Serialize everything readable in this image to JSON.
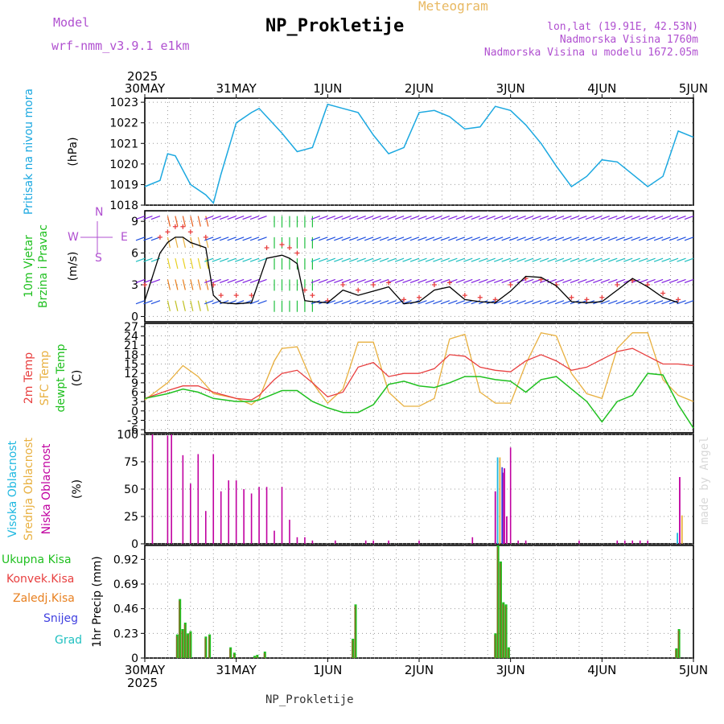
{
  "header": {
    "title": "NP_Prokletije",
    "subtitle": "Meteogram",
    "model_label": "Model",
    "model_value": "wrf-nmm_v3.9.1 e1km",
    "info_lonlat": "lon,lat (19.91E, 42.53N)",
    "info_altitude": "Nadmorska Visina 1760m",
    "info_model_altitude": "Nadmorska Visina u modelu 1672.05m"
  },
  "footer": {
    "station": "NP_Prokletije",
    "credit": "made by Angel"
  },
  "time_axis": {
    "year": "2025",
    "labels": [
      "30MAY",
      "31MAY",
      "1JUN",
      "2JUN",
      "3JUN",
      "4JUN",
      "5JUN"
    ]
  },
  "colors": {
    "pressure": "#1ba8e0",
    "temp2m": "#e84040",
    "sfc_temp": "#e8b040",
    "dewpt": "#20c020",
    "high_cloud": "#20b8e0",
    "mid_cloud": "#e8b040",
    "low_cloud": "#c000a0",
    "rain_total": "#20c020",
    "rain_conv": "#e84040",
    "graupel": "#e88020",
    "snow": "#4040e0",
    "hail": "#20c0c0",
    "wind_gust": "#e84040",
    "wind_speed": "#000000"
  },
  "chart_data": [
    {
      "type": "line",
      "panel": "pressure",
      "ylabel_lines": [
        "Pritisak na nivou mora",
        "(hPa)"
      ],
      "ylim": [
        1018,
        1023.2
      ],
      "yticks": [
        1018,
        1019,
        1020,
        1021,
        1022,
        1023
      ],
      "x_hours": [
        0,
        4,
        6,
        8,
        12,
        16,
        18,
        20,
        24,
        28,
        30,
        36,
        40,
        44,
        48,
        52,
        56,
        60,
        64,
        68,
        72,
        76,
        80,
        84,
        88,
        92,
        96,
        100,
        104,
        108,
        112,
        116,
        120,
        124,
        128,
        132,
        136,
        140,
        144
      ],
      "series": [
        {
          "values": [
            1018.9,
            1019.2,
            1020.5,
            1020.4,
            1019.0,
            1018.5,
            1018.1,
            1019.5,
            1022.0,
            1022.5,
            1022.7,
            1021.5,
            1020.6,
            1020.8,
            1022.9,
            1022.7,
            1022.5,
            1021.4,
            1020.5,
            1020.8,
            1022.5,
            1022.6,
            1022.3,
            1021.7,
            1021.8,
            1022.8,
            1022.6,
            1021.9,
            1021.0,
            1019.9,
            1018.9,
            1019.4,
            1020.2,
            1020.1,
            1019.5,
            1018.9,
            1019.4,
            1021.6,
            1021.3
          ]
        }
      ]
    },
    {
      "type": "line",
      "panel": "wind",
      "ylabel_lines": [
        "10m Vjetar",
        "Brzina i Pravac",
        "(m/s)"
      ],
      "compass": {
        "n": "N",
        "w": "W",
        "e": "E",
        "s": "S"
      },
      "ylim": [
        -0.5,
        10
      ],
      "yticks": [
        0,
        3,
        6,
        9
      ],
      "x_hours": [
        0,
        4,
        6,
        8,
        10,
        12,
        16,
        18,
        20,
        24,
        28,
        32,
        36,
        38,
        40,
        42,
        44,
        48,
        52,
        56,
        60,
        64,
        68,
        72,
        76,
        80,
        84,
        88,
        92,
        96,
        100,
        104,
        108,
        112,
        116,
        120,
        124,
        128,
        132,
        136,
        140
      ],
      "series": [
        {
          "values": [
            1.5,
            6.0,
            7.0,
            7.5,
            7.5,
            7.0,
            6.5,
            2.0,
            1.3,
            1.2,
            1.3,
            5.5,
            5.8,
            5.5,
            5.0,
            1.5,
            1.4,
            1.3,
            2.5,
            2.0,
            2.4,
            2.8,
            1.2,
            1.4,
            2.5,
            2.8,
            1.6,
            1.4,
            1.3,
            2.4,
            3.8,
            3.7,
            2.9,
            1.4,
            1.3,
            1.4,
            2.5,
            3.6,
            2.8,
            1.8,
            1.3
          ]
        },
        {
          "values": [
            3.0,
            7.5,
            8.0,
            8.5,
            8.5,
            8.0,
            7.5,
            3.0,
            2.0,
            2.0,
            2.0,
            6.5,
            6.8,
            6.5,
            6.0,
            2.5,
            2.0,
            1.5,
            3.0,
            2.5,
            3.0,
            3.2,
            1.6,
            1.8,
            3.0,
            3.2,
            2.0,
            1.8,
            1.6,
            3.0,
            3.6,
            3.5,
            3.0,
            1.8,
            1.6,
            1.8,
            3.0,
            3.4,
            3.0,
            2.2,
            1.6
          ]
        }
      ]
    },
    {
      "type": "line",
      "panel": "temperature",
      "ylabel_lines": [
        "2m Temp",
        "SFC Temp",
        "dewpt Temp",
        "(C)"
      ],
      "ylim": [
        -7,
        28
      ],
      "yticks": [
        -6,
        -3,
        0,
        3,
        6,
        9,
        12,
        15,
        18,
        21,
        24,
        27
      ],
      "x_hours": [
        0,
        6,
        10,
        14,
        18,
        24,
        28,
        30,
        34,
        36,
        40,
        44,
        48,
        52,
        56,
        60,
        64,
        68,
        72,
        76,
        80,
        84,
        88,
        92,
        96,
        100,
        104,
        108,
        112,
        116,
        120,
        124,
        128,
        132,
        136,
        140,
        144
      ],
      "series": [
        {
          "values": [
            4.0,
            6.5,
            8.0,
            8.0,
            6.0,
            4.0,
            3.5,
            5.0,
            10.0,
            12.0,
            13.0,
            9.0,
            4.5,
            6.0,
            14.0,
            15.5,
            11.0,
            12.0,
            12.0,
            13.5,
            18.0,
            17.5,
            14.0,
            13.0,
            12.5,
            16.0,
            18.0,
            16.0,
            13.0,
            14.0,
            16.5,
            19.0,
            20.0,
            17.5,
            15.0,
            15.0,
            14.5
          ]
        },
        {
          "values": [
            3.5,
            9.0,
            14.5,
            11.0,
            5.5,
            4.0,
            2.0,
            4.0,
            16.0,
            20.0,
            20.5,
            9.0,
            2.5,
            7.0,
            22.0,
            22.0,
            6.0,
            1.5,
            1.5,
            4.0,
            23.0,
            24.5,
            6.0,
            2.5,
            2.5,
            15.0,
            25.0,
            24.0,
            12.0,
            5.5,
            4.0,
            20.0,
            25.0,
            25.0,
            10.0,
            5.0,
            3.0
          ]
        },
        {
          "values": [
            4.0,
            5.5,
            7.0,
            6.0,
            4.0,
            3.0,
            3.0,
            3.5,
            5.5,
            6.5,
            6.5,
            3.0,
            1.0,
            -0.5,
            -0.5,
            2.0,
            8.5,
            9.5,
            8.0,
            7.5,
            9.0,
            11.0,
            11.0,
            10.0,
            9.5,
            6.0,
            10.0,
            11.0,
            7.0,
            3.0,
            -3.5,
            3.0,
            5.0,
            12.0,
            11.5,
            2.0,
            -5.5
          ]
        }
      ]
    },
    {
      "type": "bar",
      "panel": "cloud",
      "ylabel_lines": [
        "Visoka Oblacnost",
        "Srednja Oblacnost",
        "Niska Oblacnost",
        "(%)"
      ],
      "ylim": [
        0,
        100
      ],
      "yticks": [
        0,
        25,
        50,
        75,
        100
      ],
      "x_hours": [
        2,
        6,
        7,
        10,
        12,
        14,
        16,
        18,
        20,
        22,
        24,
        26,
        28,
        30,
        32,
        34,
        36,
        38,
        40,
        42,
        44,
        50,
        58,
        60,
        64,
        72,
        86,
        92,
        94,
        96,
        98,
        100,
        114,
        124,
        126,
        128,
        130,
        132
      ],
      "series": [
        {
          "values": [
            100,
            99,
            100,
            81,
            55,
            82,
            30,
            82,
            48,
            58,
            58,
            50,
            46,
            52,
            52,
            12,
            52,
            22,
            6,
            6,
            3,
            3,
            3,
            3,
            3,
            3,
            6,
            3,
            65,
            88,
            3,
            3,
            3,
            3,
            3,
            3,
            3,
            3
          ]
        }
      ],
      "highlights": [
        {
          "x_hour": 92,
          "value": 48
        },
        {
          "x_hour": 92.6,
          "value": 79
        },
        {
          "x_hour": 93.2,
          "value": 79
        },
        {
          "x_hour": 93.8,
          "value": 70
        },
        {
          "x_hour": 94.4,
          "value": 69
        },
        {
          "x_hour": 95.0,
          "value": 25
        },
        {
          "x_hour": 139.8,
          "value": 10
        },
        {
          "x_hour": 140.4,
          "value": 61
        },
        {
          "x_hour": 141.0,
          "value": 26
        }
      ]
    },
    {
      "type": "bar",
      "panel": "precipitation",
      "ylabel_lines": [
        "Ukupna Kisa",
        "Konvek.Kisa",
        "Zaledj.Kisa",
        "Snijeg",
        "Grad",
        "1hr Precip (mm)"
      ],
      "ylim": [
        0,
        1.05
      ],
      "yticks": [
        0,
        0.23,
        0.46,
        0.69,
        0.92
      ],
      "x_hours": [
        8.5,
        9.2,
        9.9,
        10.6,
        11.3,
        12.0,
        16.0,
        17.0,
        22.5,
        23.5,
        28.8,
        29.5,
        31.5,
        54.6,
        55.3,
        92.0,
        92.7,
        93.4,
        94.1,
        94.8,
        95.5,
        139.5,
        140.2
      ],
      "series": [
        {
          "values": [
            0.22,
            0.55,
            0.27,
            0.33,
            0.23,
            0.25,
            0.2,
            0.22,
            0.1,
            0.05,
            0.02,
            0.03,
            0.06,
            0.18,
            0.5,
            0.23,
            1.05,
            0.9,
            0.52,
            0.5,
            0.1,
            0.09,
            0.27
          ]
        }
      ]
    }
  ]
}
